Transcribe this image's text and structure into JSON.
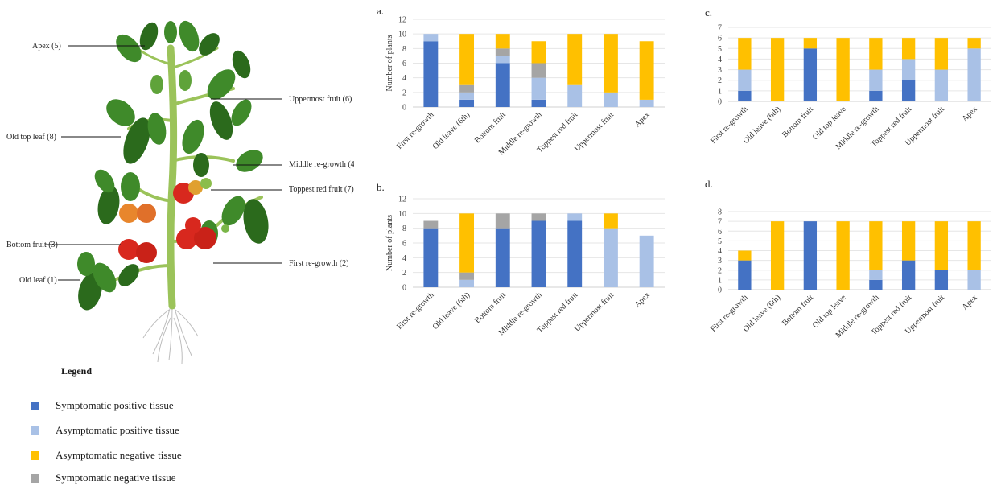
{
  "colors": {
    "symptomatic_positive": "#4472C4",
    "asymptomatic_positive": "#A9C1E6",
    "asymptomatic_negative": "#FFC000",
    "symptomatic_negative": "#A5A5A5",
    "axis": "#d0d0d0",
    "stem": "#9bc35a",
    "leaf": "#3f8a2a",
    "leaf_dark": "#2b6a1c",
    "fruit_red": "#d8281e",
    "fruit_orange": "#e8862c",
    "fruit_green": "#7ab648"
  },
  "plant_labels": {
    "apex": "Apex (5)",
    "uppermost_fruit": "Uppermost fruit (6)",
    "old_top_leaf": "Old top leaf (8)",
    "middle_regrowth": "Middle re-growth (4)",
    "toppest_red_fruit": "Toppest red fruit (7)",
    "bottom_fruit": "Bottom fruit (3)",
    "first_regrowth": "First re-growth (2)",
    "old_leaf": "Old leaf (1)"
  },
  "legend": {
    "title": "Legend",
    "items": [
      {
        "label": "Symptomatic positive tissue",
        "color": "#4472C4"
      },
      {
        "label": "Asymptomatic positive tissue",
        "color": "#A9C1E6"
      },
      {
        "label": "Asymptomatic negative tissue",
        "color": "#FFC000"
      },
      {
        "label": "Symptomatic negative tissue",
        "color": "#A5A5A5"
      }
    ]
  },
  "chart_data": [
    {
      "panel": "a.",
      "type": "bar",
      "stacked": true,
      "ylabel": "Number of plants",
      "ylim": [
        0,
        12
      ],
      "yticks": [
        0,
        2,
        4,
        6,
        8,
        10,
        12
      ],
      "categories": [
        "First re-growth",
        "Old leave (6th)",
        "Bottom fruit",
        "Middle re-growth",
        "Toppest red fruit",
        "Uppermost fruit",
        "Apex"
      ],
      "series": [
        {
          "name": "Symptomatic positive tissue",
          "values": [
            9,
            1,
            6,
            1,
            0,
            0,
            0
          ]
        },
        {
          "name": "Asymptomatic positive tissue",
          "values": [
            1,
            1,
            1,
            3,
            3,
            2,
            1
          ]
        },
        {
          "name": "Symptomatic negative tissue",
          "values": [
            0,
            1,
            1,
            2,
            0,
            0,
            0
          ]
        },
        {
          "name": "Asymptomatic negative tissue",
          "values": [
            0,
            7,
            2,
            3,
            7,
            8,
            8
          ]
        }
      ]
    },
    {
      "panel": "b.",
      "type": "bar",
      "stacked": true,
      "ylabel": "Number of plants",
      "ylim": [
        0,
        12
      ],
      "yticks": [
        0,
        2,
        4,
        6,
        8,
        10,
        12
      ],
      "categories": [
        "First re-growth",
        "Old leave (6th)",
        "Bottom fruit",
        "Middle re-growth",
        "Toppest red fruit",
        "Uppermost fruit",
        "Apex"
      ],
      "series": [
        {
          "name": "Symptomatic positive tissue",
          "values": [
            8,
            0,
            8,
            9,
            9,
            0,
            0
          ]
        },
        {
          "name": "Asymptomatic positive tissue",
          "values": [
            0,
            1,
            0,
            0,
            1,
            8,
            7
          ]
        },
        {
          "name": "Symptomatic negative tissue",
          "values": [
            1,
            1,
            2,
            1,
            0,
            0,
            0
          ]
        },
        {
          "name": "Asymptomatic negative tissue",
          "values": [
            0,
            8,
            0,
            0,
            0,
            2,
            0
          ]
        }
      ]
    },
    {
      "panel": "c.",
      "type": "bar",
      "stacked": true,
      "ylabel": "",
      "ylim": [
        0,
        7
      ],
      "yticks": [
        0,
        1,
        2,
        3,
        4,
        5,
        6,
        7
      ],
      "categories": [
        "First re-growth",
        "Old leave (6th)",
        "Bottom fruit",
        "Old top leave",
        "Middle re-growth",
        "Toppest red fruit",
        "Uppermost fruit",
        "Apex"
      ],
      "series": [
        {
          "name": "Symptomatic positive tissue",
          "values": [
            1,
            0,
            5,
            0,
            1,
            2,
            0,
            0
          ]
        },
        {
          "name": "Asymptomatic positive tissue",
          "values": [
            2,
            0,
            0,
            0,
            2,
            2,
            3,
            5
          ]
        },
        {
          "name": "Symptomatic negative tissue",
          "values": [
            0,
            0,
            0,
            0,
            0,
            0,
            0,
            0
          ]
        },
        {
          "name": "Asymptomatic negative tissue",
          "values": [
            3,
            6,
            1,
            6,
            3,
            2,
            3,
            1
          ]
        }
      ]
    },
    {
      "panel": "d.",
      "type": "bar",
      "stacked": true,
      "ylabel": "",
      "ylim": [
        0,
        8
      ],
      "yticks": [
        0,
        1,
        2,
        3,
        4,
        5,
        6,
        7,
        8
      ],
      "categories": [
        "First re-growth",
        "Old leave (6th)",
        "Bottom fruit",
        "Old top leave",
        "Middle re-growth",
        "Toppest red fruit",
        "Uppermost fruit",
        "Apex"
      ],
      "series": [
        {
          "name": "Symptomatic positive tissue",
          "values": [
            3,
            0,
            7,
            0,
            1,
            3,
            2,
            0
          ]
        },
        {
          "name": "Asymptomatic positive tissue",
          "values": [
            0,
            0,
            0,
            0,
            1,
            0,
            0,
            2
          ]
        },
        {
          "name": "Symptomatic negative tissue",
          "values": [
            0,
            0,
            0,
            0,
            0,
            0,
            0,
            0
          ]
        },
        {
          "name": "Asymptomatic negative tissue",
          "values": [
            1,
            7,
            0,
            7,
            5,
            4,
            5,
            5
          ]
        }
      ]
    }
  ]
}
